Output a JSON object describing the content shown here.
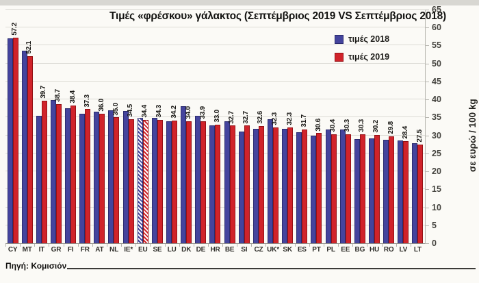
{
  "title": "Τιμές «φρέσκου» γάλακτος (Σεπτέμβριος 2019 VS Σεπτέμβριος 2018)",
  "legend": [
    {
      "label": "τιμές 2018",
      "color": "#44449d"
    },
    {
      "label": "τιμές 2019",
      "color": "#d0232a"
    }
  ],
  "y_axis": {
    "title": "σε ευρώ / 100 kg",
    "ticks": [
      0,
      5,
      10,
      15,
      20,
      25,
      30,
      35,
      40,
      45,
      50,
      55,
      60,
      65
    ],
    "max": 65
  },
  "source": "Πηγή: Κομισιόν",
  "chart_data": {
    "type": "bar",
    "categories": [
      "CY",
      "MT",
      "IT",
      "GR",
      "FI",
      "FR",
      "AT",
      "NL",
      "IE*",
      "EU",
      "SE",
      "LU",
      "DK",
      "DE",
      "HR",
      "BE",
      "SI",
      "CZ",
      "UK*",
      "SK",
      "ES",
      "PT",
      "PL",
      "EE",
      "BG",
      "HU",
      "RO",
      "LV",
      "LT"
    ],
    "series": [
      {
        "name": "τιμές 2018",
        "color": "#44449d",
        "values": [
          57.0,
          53.6,
          35.4,
          39.8,
          37.5,
          36.0,
          36.6,
          37.0,
          36.8,
          34.9,
          34.9,
          34.0,
          38.1,
          35.5,
          32.8,
          33.9,
          31.1,
          31.9,
          34.5,
          31.9,
          30.9,
          30.0,
          31.7,
          31.6,
          29.0,
          29.2,
          28.8,
          28.6,
          27.9
        ]
      },
      {
        "name": "τιμές 2019",
        "color": "#d0232a",
        "values": [
          57.2,
          52.1,
          39.7,
          38.7,
          38.4,
          37.3,
          36.0,
          35.0,
          34.5,
          34.4,
          34.3,
          34.2,
          34.0,
          33.9,
          33.0,
          32.7,
          32.7,
          32.6,
          32.3,
          32.3,
          31.7,
          30.6,
          30.4,
          30.3,
          30.3,
          30.2,
          29.8,
          28.4,
          27.5
        ]
      }
    ],
    "data_labels": [
      "57.2",
      "52.1",
      "39.7",
      "38.7",
      "38.4",
      "37.3",
      "36.0",
      "35.0",
      "34.5",
      "34.4",
      "34.3",
      "34.2",
      "34.0",
      "33.9",
      "33.0",
      "32.7",
      "32.7",
      "32.6",
      "32.3",
      "32.3",
      "31.7",
      "30.6",
      "30.4",
      "30.3",
      "30.3",
      "30.2",
      "29.8",
      "28.4",
      "27.5"
    ],
    "hatched_category": "EU",
    "title": "Τιμές «φρέσκου» γάλακτος (Σεπτέμβριος 2019 VS Σεπτέμβριος 2018)",
    "ylabel": "σε ευρώ / 100 kg",
    "ylim": [
      0,
      65
    ],
    "grid": true,
    "legend_position": "top-right"
  }
}
